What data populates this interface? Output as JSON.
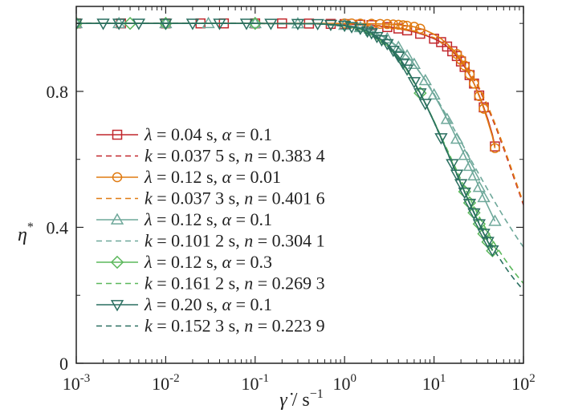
{
  "chart_data": {
    "type": "line",
    "xscale": "log",
    "xlim": [
      0.001,
      100
    ],
    "ylim": [
      0,
      1.05
    ],
    "xticks": [
      {
        "value": 0.001,
        "base": "10",
        "exp": "-3"
      },
      {
        "value": 0.01,
        "base": "10",
        "exp": "-2"
      },
      {
        "value": 0.1,
        "base": "10",
        "exp": "-1"
      },
      {
        "value": 1,
        "base": "10",
        "exp": "0"
      },
      {
        "value": 10,
        "base": "10",
        "exp": "1"
      },
      {
        "value": 100,
        "base": "10",
        "exp": "2"
      }
    ],
    "yticks": [
      {
        "value": 0,
        "label": "0"
      },
      {
        "value": 0.4,
        "label": "0.4"
      },
      {
        "value": 0.8,
        "label": "0.8"
      }
    ],
    "xlabel": {
      "symbol": "γ̇",
      "sep": " / s",
      "exp": "−1"
    },
    "ylabel": {
      "symbol": "η",
      "exp": "*"
    },
    "grid": false,
    "legend_position": "left-center",
    "series": [
      {
        "legend": {
          "p1": "λ",
          "v1": " = 0.04 s, ",
          "p2": "α",
          "v2": " = 0.1"
        },
        "color": "#c1272d",
        "marker": "square",
        "style": "solid",
        "x": [
          0.001,
          0.003,
          0.01,
          0.03,
          0.1,
          0.3,
          1,
          2,
          4,
          6,
          8,
          10,
          12,
          14,
          16,
          18,
          20,
          22,
          25,
          28,
          32,
          36,
          40,
          45,
          48
        ],
        "y": [
          1.0,
          1.0,
          1.0,
          1.0,
          1.0,
          1.0,
          0.998,
          0.995,
          0.985,
          0.975,
          0.965,
          0.955,
          0.945,
          0.932,
          0.918,
          0.904,
          0.888,
          0.872,
          0.848,
          0.823,
          0.788,
          0.753,
          0.718,
          0.672,
          0.638
        ],
        "marker_x": [
          0.001,
          0.00316,
          0.01,
          0.0245,
          0.0447,
          0.1,
          0.2,
          0.4,
          0.7,
          1.0,
          1.5,
          2.0,
          3.0,
          4.0,
          5.0,
          7.0,
          10,
          12,
          14,
          16,
          18,
          20,
          22,
          25,
          28,
          32,
          36,
          48
        ]
      },
      {
        "legend": {
          "p1": "k",
          "v1": " = 0.037 5 s, ",
          "p2": "n",
          "v2": " = 0.383 4"
        },
        "color": "#c1272d",
        "marker": "none",
        "style": "dashed",
        "x": [
          0.001,
          0.1,
          1,
          3,
          6,
          10,
          15,
          20,
          30,
          40,
          50,
          60,
          70,
          80,
          90,
          100
        ],
        "y": [
          1.0,
          1.0,
          0.998,
          0.992,
          0.978,
          0.957,
          0.927,
          0.893,
          0.822,
          0.752,
          0.689,
          0.632,
          0.582,
          0.538,
          0.5,
          0.466
        ]
      },
      {
        "legend": {
          "p1": "λ",
          "v1": " = 0.12 s, ",
          "p2": "α",
          "v2": " = 0.01"
        },
        "color": "#e07b12",
        "marker": "circle",
        "style": "solid",
        "x": [
          0.001,
          0.01,
          0.1,
          0.5,
          1,
          2,
          3,
          4,
          5,
          6,
          8,
          10,
          12,
          14,
          16,
          18,
          20,
          22,
          25,
          28,
          32,
          36,
          40,
          45,
          48
        ],
        "y": [
          1.0,
          1.0,
          1.0,
          1.0,
          1.0,
          0.999,
          0.998,
          0.996,
          0.993,
          0.99,
          0.98,
          0.968,
          0.955,
          0.94,
          0.925,
          0.91,
          0.893,
          0.876,
          0.85,
          0.823,
          0.786,
          0.749,
          0.712,
          0.667,
          0.633
        ],
        "marker_x": [
          1.0,
          1.2,
          1.5,
          2.0,
          2.5,
          3.0,
          3.5,
          4.0,
          4.5,
          5.0,
          6.0,
          7.0,
          18,
          20,
          22,
          25,
          28,
          32,
          36,
          48
        ]
      },
      {
        "legend": {
          "p1": "k",
          "v1": " = 0.037 3 s, ",
          "p2": "n",
          "v2": " = 0.401 6"
        },
        "color": "#e07b12",
        "marker": "none",
        "style": "dashed",
        "x": [
          0.001,
          0.1,
          1,
          3,
          6,
          10,
          15,
          20,
          30,
          40,
          50,
          60,
          70,
          80,
          90,
          100
        ],
        "y": [
          1.0,
          1.0,
          0.998,
          0.992,
          0.978,
          0.958,
          0.928,
          0.895,
          0.826,
          0.757,
          0.694,
          0.638,
          0.588,
          0.544,
          0.505,
          0.472
        ]
      },
      {
        "legend": {
          "p1": "λ",
          "v1": " = 0.12 s, ",
          "p2": "α",
          "v2": " = 0.1"
        },
        "color": "#6ea89a",
        "marker": "triangle-up",
        "style": "solid",
        "x": [
          0.001,
          0.01,
          0.1,
          0.5,
          1,
          1.5,
          2,
          3,
          4,
          5,
          6,
          7,
          8,
          10,
          12,
          14,
          16,
          18,
          20,
          22,
          25,
          28,
          32,
          36,
          40,
          45,
          48
        ],
        "y": [
          1.0,
          1.0,
          1.0,
          0.999,
          0.995,
          0.988,
          0.978,
          0.955,
          0.93,
          0.905,
          0.88,
          0.855,
          0.832,
          0.79,
          0.752,
          0.718,
          0.688,
          0.66,
          0.635,
          0.612,
          0.58,
          0.552,
          0.518,
          0.488,
          0.462,
          0.434,
          0.418
        ],
        "marker_x": [
          0.001,
          0.003,
          0.01,
          0.03,
          0.1,
          0.3,
          1.0,
          1.5,
          2.0,
          3.0,
          4.0,
          5.0,
          6.0,
          8.0,
          10,
          14,
          18,
          22,
          25,
          28,
          32,
          36,
          48
        ]
      },
      {
        "legend": {
          "p1": "k",
          "v1": " = 0.101 2 s, ",
          "p2": "n",
          "v2": " = 0.304 1"
        },
        "color": "#6ea89a",
        "marker": "none",
        "style": "dashed",
        "x": [
          0.001,
          0.1,
          0.5,
          1,
          2,
          3,
          5,
          8,
          10,
          15,
          20,
          30,
          40,
          50,
          60,
          70,
          80,
          90,
          100
        ],
        "y": [
          1.0,
          1.0,
          0.999,
          0.995,
          0.978,
          0.955,
          0.905,
          0.834,
          0.793,
          0.712,
          0.652,
          0.568,
          0.51,
          0.466,
          0.431,
          0.403,
          0.379,
          0.359,
          0.342
        ]
      },
      {
        "legend": {
          "p1": "λ",
          "v1": " = 0.12 s, ",
          "p2": "α",
          "v2": " = 0.3"
        },
        "color": "#5cb85c",
        "marker": "diamond",
        "style": "solid",
        "x": [
          0.001,
          0.01,
          0.1,
          0.5,
          1,
          1.5,
          2,
          3,
          4,
          5,
          6,
          7,
          8,
          10,
          12,
          14,
          16,
          18,
          20,
          22,
          25,
          28,
          32,
          36,
          40,
          45
        ],
        "y": [
          1.0,
          1.0,
          1.0,
          0.999,
          0.993,
          0.983,
          0.968,
          0.935,
          0.898,
          0.862,
          0.827,
          0.795,
          0.765,
          0.712,
          0.665,
          0.625,
          0.59,
          0.558,
          0.53,
          0.505,
          0.472,
          0.443,
          0.41,
          0.381,
          0.357,
          0.331
        ],
        "marker_x": [
          0.001,
          0.004,
          0.01,
          0.1,
          7.0,
          22,
          25,
          28,
          32,
          36,
          40,
          45
        ]
      },
      {
        "legend": {
          "p1": "k",
          "v1": " = 0.161 2 s, ",
          "p2": "n",
          "v2": " = 0.269 3"
        },
        "color": "#5cb85c",
        "marker": "none",
        "style": "dashed",
        "x": [
          0.001,
          0.1,
          0.5,
          1,
          2,
          3,
          5,
          8,
          10,
          15,
          20,
          30,
          40,
          50,
          60,
          70,
          80,
          90,
          100
        ],
        "y": [
          1.0,
          1.0,
          0.999,
          0.992,
          0.965,
          0.932,
          0.862,
          0.765,
          0.712,
          0.612,
          0.54,
          0.445,
          0.385,
          0.343,
          0.311,
          0.286,
          0.266,
          0.249,
          0.235
        ]
      },
      {
        "legend": {
          "p1": "λ",
          "v1": " = 0.20 s, ",
          "p2": "α",
          "v2": " = 0.1"
        },
        "color": "#2a6f60",
        "marker": "triangle-down",
        "style": "solid",
        "x": [
          0.001,
          0.01,
          0.1,
          0.5,
          1,
          1.5,
          2,
          3,
          4,
          5,
          6,
          7,
          8,
          10,
          12,
          14,
          16,
          18,
          20,
          22,
          25,
          28,
          32,
          36,
          40,
          45
        ],
        "y": [
          1.0,
          1.0,
          1.0,
          0.999,
          0.994,
          0.985,
          0.972,
          0.94,
          0.903,
          0.865,
          0.828,
          0.795,
          0.764,
          0.71,
          0.663,
          0.622,
          0.587,
          0.556,
          0.528,
          0.503,
          0.47,
          0.442,
          0.41,
          0.382,
          0.358,
          0.333
        ],
        "marker_x": [
          0.001,
          0.002,
          0.003,
          0.005,
          0.01,
          0.02,
          0.04,
          0.08,
          0.15,
          0.3,
          0.5,
          0.7,
          1.0,
          1.2,
          1.5,
          1.8,
          2.0,
          2.3,
          2.6,
          3.0,
          3.5,
          4.0,
          4.5,
          5.0,
          6.0,
          7.0,
          8.0,
          12,
          16,
          18,
          20,
          22,
          25,
          28,
          32,
          36,
          40,
          45
        ]
      },
      {
        "legend": {
          "p1": "k",
          "v1": " = 0.152 3 s, ",
          "p2": "n",
          "v2": " = 0.223 9"
        },
        "color": "#2a6f60",
        "marker": "none",
        "style": "dashed",
        "x": [
          0.001,
          0.1,
          0.5,
          1,
          2,
          3,
          5,
          8,
          10,
          15,
          20,
          30,
          40,
          50,
          60,
          70,
          80,
          90,
          100
        ],
        "y": [
          1.0,
          1.0,
          0.999,
          0.992,
          0.967,
          0.935,
          0.865,
          0.766,
          0.71,
          0.603,
          0.527,
          0.427,
          0.365,
          0.322,
          0.29,
          0.265,
          0.245,
          0.229,
          0.215
        ]
      }
    ]
  }
}
